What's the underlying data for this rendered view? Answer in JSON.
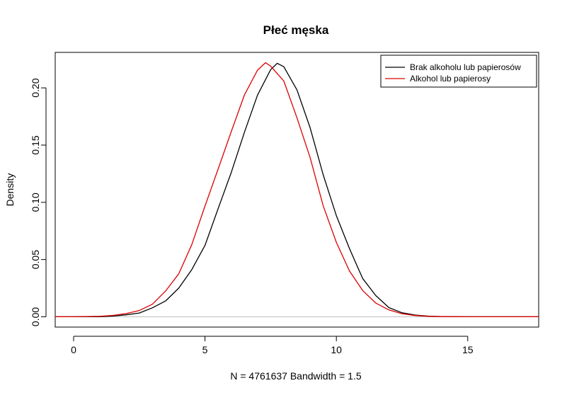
{
  "chart_data": {
    "type": "line",
    "title": "Płeć męska",
    "xlabel": "N = 4761637   Bandwidth = 1.5",
    "ylabel": "Density",
    "xlim": [
      -0.7,
      17.7
    ],
    "ylim": [
      -0.009,
      0.231
    ],
    "x_ticks": [
      0,
      5,
      10,
      15
    ],
    "x_tick_labels": [
      "0",
      "5",
      "10",
      "15"
    ],
    "y_ticks": [
      0.0,
      0.05,
      0.1,
      0.15,
      0.2
    ],
    "y_tick_labels": [
      "0.00",
      "0.05",
      "0.10",
      "0.15",
      "0.20"
    ],
    "baseline": 0,
    "grid": false,
    "legend": "top-right",
    "series": [
      {
        "name": "Brak alkoholu lub papierosów",
        "color": "#000000",
        "x": [
          -0.7,
          0.0,
          1.0,
          1.5,
          2.0,
          2.5,
          3.0,
          3.5,
          4.0,
          4.5,
          5.0,
          5.5,
          6.0,
          6.5,
          7.0,
          7.5,
          7.75,
          8.0,
          8.5,
          9.0,
          9.5,
          10.0,
          10.5,
          11.0,
          11.5,
          12.0,
          12.5,
          13.0,
          13.5,
          14.0,
          15.0,
          16.0,
          17.7
        ],
        "y": [
          0.0,
          0.0,
          0.0001,
          0.0007,
          0.0017,
          0.0033,
          0.0078,
          0.0138,
          0.025,
          0.0413,
          0.0624,
          0.0944,
          0.1261,
          0.1612,
          0.1937,
          0.216,
          0.2215,
          0.2185,
          0.1983,
          0.1652,
          0.124,
          0.0883,
          0.0596,
          0.0335,
          0.0185,
          0.008,
          0.0035,
          0.0015,
          0.0006,
          0.0002,
          0.0,
          0.0,
          0.0
        ]
      },
      {
        "name": "Alkohol lub papierosy",
        "color": "#dd0000",
        "x": [
          -0.7,
          0.0,
          1.0,
          1.5,
          2.0,
          2.5,
          3.0,
          3.5,
          4.0,
          4.5,
          5.0,
          5.5,
          6.0,
          6.5,
          7.0,
          7.3,
          7.5,
          8.0,
          8.5,
          9.0,
          9.5,
          10.0,
          10.5,
          11.0,
          11.5,
          12.0,
          12.5,
          13.0,
          13.5,
          14.0,
          15.0,
          16.0,
          17.7
        ],
        "y": [
          0.0,
          0.0,
          0.0004,
          0.0012,
          0.0028,
          0.0055,
          0.011,
          0.0225,
          0.0375,
          0.0632,
          0.0968,
          0.129,
          0.1618,
          0.1938,
          0.2155,
          0.222,
          0.219,
          0.206,
          0.1739,
          0.1391,
          0.0969,
          0.065,
          0.04,
          0.023,
          0.012,
          0.006,
          0.0027,
          0.0011,
          0.0004,
          0.0001,
          0.0,
          0.0,
          0.0
        ]
      }
    ]
  }
}
